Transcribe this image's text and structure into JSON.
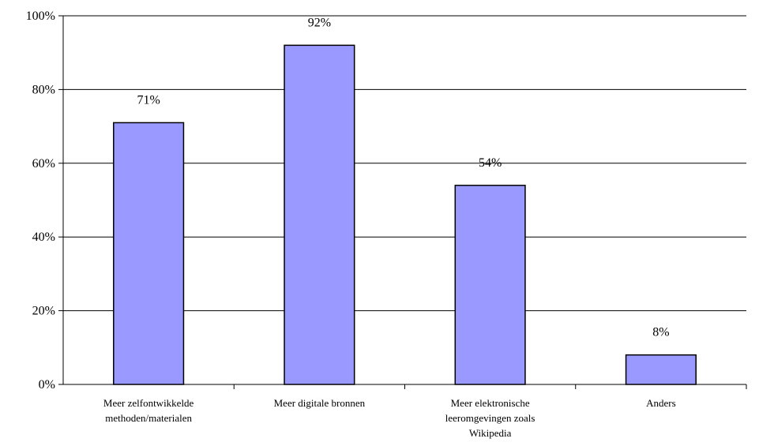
{
  "chart_data": {
    "type": "bar",
    "title": "",
    "xlabel": "",
    "ylabel": "",
    "categories": [
      [
        "Meer zelfontwikkelde",
        "methoden/materialen"
      ],
      [
        "Meer digitale bronnen"
      ],
      [
        "Meer elektronische",
        "leeromgevingen zoals",
        "Wikipedia"
      ],
      [
        "Anders"
      ]
    ],
    "values": [
      71,
      92,
      54,
      8
    ],
    "data_labels": [
      "71%",
      "92%",
      "54%",
      "8%"
    ],
    "ylim": [
      0,
      100
    ],
    "yticks": [
      0,
      20,
      40,
      60,
      80,
      100
    ],
    "ytick_labels": [
      "0%",
      "20%",
      "40%",
      "60%",
      "80%",
      "100%"
    ],
    "grid": true,
    "legend": "none",
    "bar_color": "#9999ff",
    "bar_edge_color": "#000000"
  }
}
